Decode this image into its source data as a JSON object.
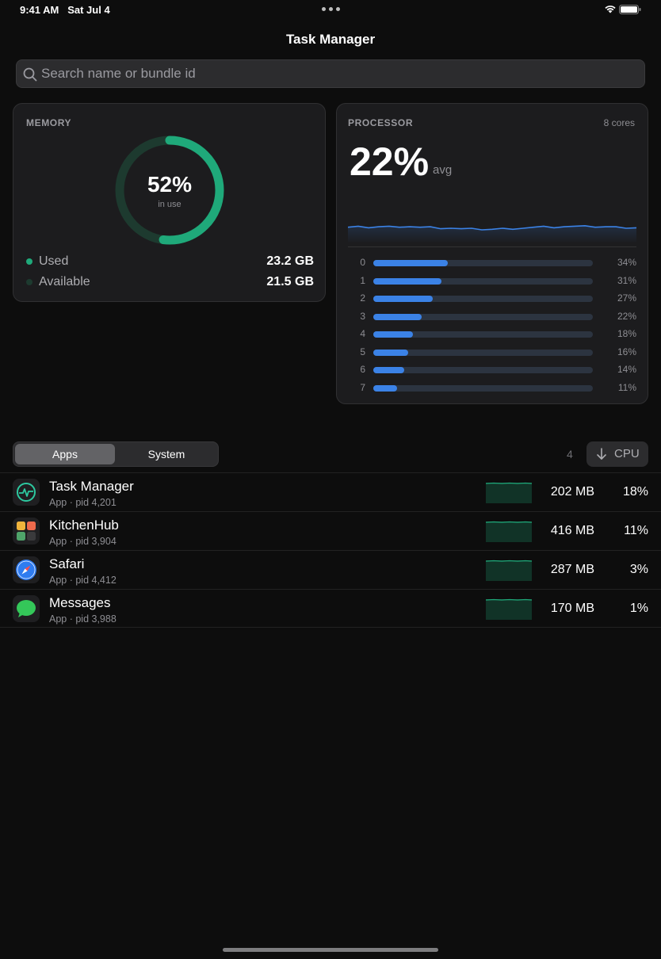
{
  "status": {
    "time": "9:41 AM",
    "date": "Sat Jul 4"
  },
  "nav": {
    "title": "Task Manager"
  },
  "search": {
    "placeholder": "Search name or bundle id"
  },
  "memory": {
    "label": "MEMORY",
    "percent_text": "52%",
    "percent": 52,
    "sub": "in use",
    "used_label": "Used",
    "used_value": "23.2 GB",
    "available_label": "Available",
    "available_value": "21.5 GB"
  },
  "processor": {
    "label": "PROCESSOR",
    "cores_text": "8 cores",
    "avg_value": "22%",
    "avg_label": "avg",
    "history": [
      22,
      24,
      21,
      23,
      24,
      22,
      23,
      22,
      23,
      19,
      20,
      19,
      20,
      17,
      18,
      20,
      18,
      20,
      22,
      24,
      21,
      23,
      24,
      25,
      22,
      23,
      23,
      20,
      21
    ],
    "cores": [
      {
        "index": "0",
        "value": 34,
        "pct": "34%"
      },
      {
        "index": "1",
        "value": 31,
        "pct": "31%"
      },
      {
        "index": "2",
        "value": 27,
        "pct": "27%"
      },
      {
        "index": "3",
        "value": 22,
        "pct": "22%"
      },
      {
        "index": "4",
        "value": 18,
        "pct": "18%"
      },
      {
        "index": "5",
        "value": 16,
        "pct": "16%"
      },
      {
        "index": "6",
        "value": 14,
        "pct": "14%"
      },
      {
        "index": "7",
        "value": 11,
        "pct": "11%"
      }
    ]
  },
  "tabs": {
    "apps": "Apps",
    "system": "System"
  },
  "list": {
    "count": "4",
    "sort_label": "CPU",
    "items": [
      {
        "name": "Task Manager",
        "sub": "App · pid 4,201",
        "mem": "202 MB",
        "cpu": "18%",
        "icon": "task-manager-icon"
      },
      {
        "name": "KitchenHub",
        "sub": "App · pid 3,904",
        "mem": "416 MB",
        "cpu": "11%",
        "icon": "kitchenhub-icon"
      },
      {
        "name": "Safari",
        "sub": "App · pid 4,412",
        "mem": "287 MB",
        "cpu": "3%",
        "icon": "safari-icon"
      },
      {
        "name": "Messages",
        "sub": "App · pid 3,988",
        "mem": "170 MB",
        "cpu": "1%",
        "icon": "messages-icon"
      }
    ]
  },
  "colors": {
    "accent_green": "#1fa97a",
    "accent_blue": "#3b82e6",
    "background": "#0d0d0d",
    "card": "#1c1c1e"
  }
}
